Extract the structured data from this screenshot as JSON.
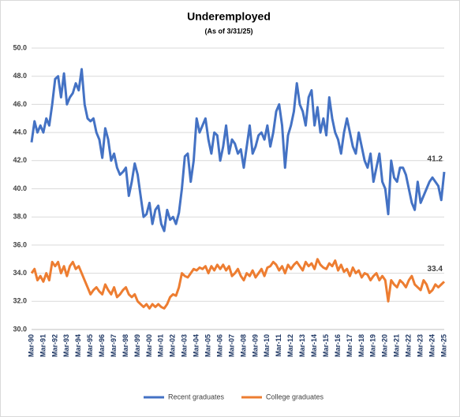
{
  "chart_data": {
    "type": "line",
    "title": "Underemployed",
    "subtitle": "(As of 3/31/25)",
    "categories": [
      "Mar-90",
      null,
      null,
      null,
      "Mar-91",
      null,
      null,
      null,
      "Mar-92",
      null,
      null,
      null,
      "Mar-93",
      null,
      null,
      null,
      "Mar-94",
      null,
      null,
      null,
      "Mar-95",
      null,
      null,
      null,
      "Mar-96",
      null,
      null,
      null,
      "Mar-97",
      null,
      null,
      null,
      "Mar-98",
      null,
      null,
      null,
      "Mar-99",
      null,
      null,
      null,
      "Mar-00",
      null,
      null,
      null,
      "Mar-01",
      null,
      null,
      null,
      "Mar-02",
      null,
      null,
      null,
      "Mar-03",
      null,
      null,
      null,
      "Mar-04",
      null,
      null,
      null,
      "Mar-05",
      null,
      null,
      null,
      "Mar-06",
      null,
      null,
      null,
      "Mar-07",
      null,
      null,
      null,
      "Mar-08",
      null,
      null,
      null,
      "Mar-09",
      null,
      null,
      null,
      "Mar-10",
      null,
      null,
      null,
      "Mar-11",
      null,
      null,
      null,
      "Mar-12",
      null,
      null,
      null,
      "Mar-13",
      null,
      null,
      null,
      "Mar-14",
      null,
      null,
      null,
      "Mar-15",
      null,
      null,
      null,
      "Mar-16",
      null,
      null,
      null,
      "Mar-17",
      null,
      null,
      null,
      "Mar-18",
      null,
      null,
      null,
      "Mar-19",
      null,
      null,
      null,
      "Mar-20",
      null,
      null,
      null,
      "Mar-21",
      null,
      null,
      null,
      "Mar-22",
      null,
      null,
      null,
      "Mar-23",
      null,
      null,
      null,
      "Mar-24",
      null,
      null,
      null,
      "Mar-25"
    ],
    "series": [
      {
        "name": "Recent graduates",
        "color": "#4472c4",
        "values": [
          43.3,
          44.8,
          44.0,
          44.5,
          44.0,
          45.0,
          44.5,
          46.0,
          47.8,
          48.0,
          46.5,
          48.2,
          46.0,
          46.5,
          46.8,
          47.5,
          47.0,
          48.5,
          46.0,
          45.0,
          44.8,
          45.0,
          44.0,
          43.5,
          42.2,
          44.3,
          43.5,
          42.0,
          42.5,
          41.5,
          41.0,
          41.2,
          41.5,
          39.5,
          40.5,
          41.8,
          41.0,
          39.5,
          38.0,
          38.2,
          39.0,
          37.5,
          38.5,
          38.8,
          37.5,
          37.0,
          38.5,
          37.8,
          38.0,
          37.5,
          38.3,
          40.0,
          42.3,
          42.5,
          40.5,
          42.0,
          45.0,
          44.0,
          44.5,
          45.0,
          43.5,
          42.5,
          44.0,
          43.8,
          42.0,
          43.0,
          44.5,
          42.5,
          43.5,
          43.2,
          42.5,
          42.8,
          41.5,
          43.0,
          44.5,
          42.5,
          43.0,
          43.8,
          44.0,
          43.5,
          44.5,
          43.0,
          44.0,
          45.5,
          46.0,
          44.5,
          41.5,
          43.8,
          44.5,
          45.5,
          47.5,
          46.0,
          45.5,
          44.5,
          46.5,
          47.0,
          44.5,
          45.8,
          44.0,
          45.0,
          43.8,
          46.5,
          45.0,
          44.0,
          43.5,
          42.5,
          44.0,
          45.0,
          44.0,
          43.0,
          42.5,
          44.0,
          43.0,
          42.0,
          41.5,
          42.5,
          40.5,
          41.5,
          42.5,
          40.5,
          40.0,
          38.2,
          42.0,
          40.8,
          40.5,
          41.5,
          41.5,
          41.0,
          40.0,
          39.0,
          38.5,
          40.5,
          39.0,
          39.5,
          40.0,
          40.5,
          40.8,
          40.5,
          40.2,
          39.2,
          41.2
        ]
      },
      {
        "name": "College graduates",
        "color": "#ed7d31",
        "values": [
          34.0,
          34.3,
          33.5,
          33.8,
          33.4,
          34.0,
          33.5,
          34.8,
          34.5,
          34.8,
          34.0,
          34.5,
          33.8,
          34.5,
          34.8,
          34.3,
          34.5,
          34.0,
          33.5,
          33.0,
          32.5,
          32.8,
          33.0,
          32.7,
          32.5,
          33.2,
          32.8,
          32.5,
          33.0,
          32.3,
          32.5,
          32.8,
          33.0,
          32.5,
          32.3,
          32.5,
          32.0,
          31.8,
          31.6,
          31.8,
          31.5,
          31.8,
          31.6,
          31.8,
          31.6,
          31.5,
          31.8,
          32.3,
          32.5,
          32.4,
          33.0,
          34.0,
          33.8,
          33.7,
          34.0,
          34.3,
          34.2,
          34.4,
          34.3,
          34.5,
          34.0,
          34.5,
          34.2,
          34.6,
          34.3,
          34.6,
          34.2,
          34.5,
          33.8,
          34.0,
          34.3,
          33.8,
          33.5,
          34.0,
          33.8,
          34.2,
          33.7,
          34.0,
          34.3,
          33.8,
          34.4,
          34.5,
          34.8,
          34.6,
          34.2,
          34.5,
          34.0,
          34.6,
          34.3,
          34.6,
          34.8,
          34.5,
          34.2,
          34.8,
          34.5,
          34.7,
          34.3,
          35.0,
          34.6,
          34.4,
          34.3,
          34.7,
          34.5,
          34.9,
          34.2,
          34.6,
          34.1,
          34.3,
          33.8,
          34.4,
          34.0,
          34.2,
          33.7,
          34.0,
          33.9,
          33.5,
          33.8,
          34.0,
          33.5,
          33.8,
          33.5,
          32.0,
          33.5,
          33.2,
          33.0,
          33.5,
          33.3,
          33.0,
          33.5,
          33.8,
          33.2,
          33.0,
          32.8,
          33.5,
          33.2,
          32.6,
          32.8,
          33.2,
          33.0,
          33.2,
          33.4
        ]
      }
    ],
    "ylim": [
      30,
      50
    ],
    "yticks": [
      {
        "value": 30,
        "label": "30.0"
      },
      {
        "value": 32,
        "label": "32.0"
      },
      {
        "value": 34,
        "label": "34.0"
      },
      {
        "value": 36,
        "label": "36.0"
      },
      {
        "value": 38,
        "label": "38.0"
      },
      {
        "value": 40,
        "label": "40.0"
      },
      {
        "value": 42,
        "label": "42.0"
      },
      {
        "value": 44,
        "label": "44.0"
      },
      {
        "value": 46,
        "label": "46.0"
      },
      {
        "value": 48,
        "label": "48.0"
      },
      {
        "value": 50,
        "label": "50.0"
      }
    ],
    "grid": true,
    "legend": "bottom"
  }
}
